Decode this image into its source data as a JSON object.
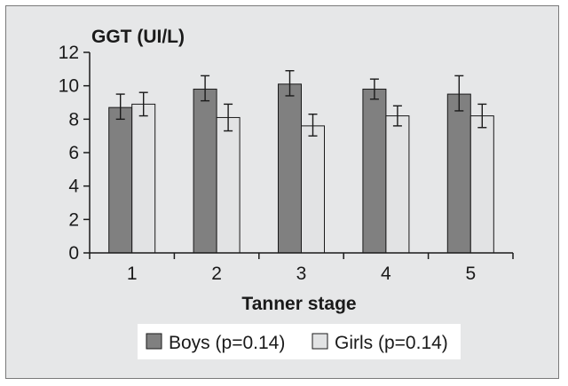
{
  "chart_data": {
    "type": "bar",
    "ylabel": "GGT (UI/L)",
    "xlabel": "Tanner stage",
    "categories": [
      "1",
      "2",
      "3",
      "4",
      "5"
    ],
    "ylim": [
      0,
      12
    ],
    "yticks": [
      "0",
      "2",
      "4",
      "6",
      "8",
      "10",
      "12"
    ],
    "grid": false,
    "legend_position": "bottom",
    "series": [
      {
        "name": "Boys (p=0.14)",
        "color": "#808080",
        "values": [
          8.7,
          9.8,
          10.1,
          9.8,
          9.5
        ],
        "err_low": [
          8.0,
          9.1,
          9.4,
          9.2,
          8.5
        ],
        "err_high": [
          9.5,
          10.6,
          10.9,
          10.4,
          10.6
        ]
      },
      {
        "name": "Girls (p=0.14)",
        "color": "#e2e3e4",
        "values": [
          8.9,
          8.1,
          7.6,
          8.2,
          8.2
        ],
        "err_low": [
          8.2,
          7.3,
          7.0,
          7.6,
          7.5
        ],
        "err_high": [
          9.6,
          8.9,
          8.3,
          8.8,
          8.9
        ]
      }
    ]
  }
}
